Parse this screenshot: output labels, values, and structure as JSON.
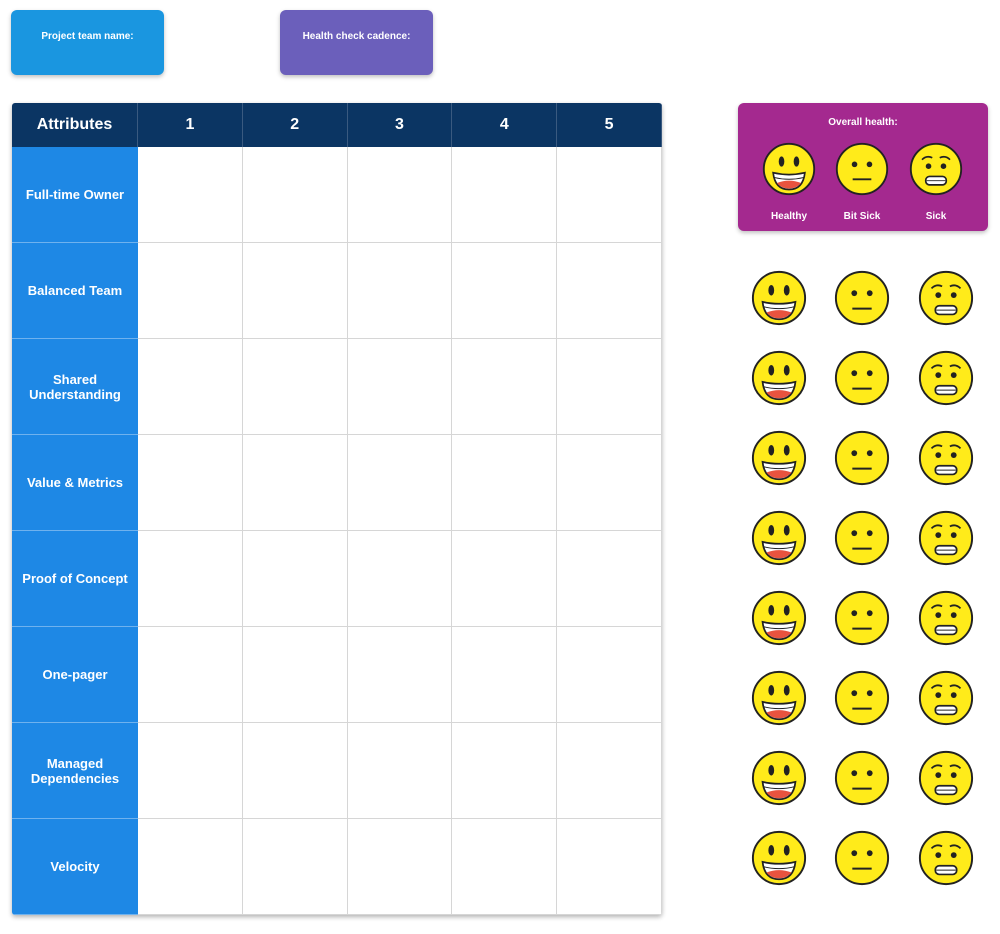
{
  "header": {
    "team_name_label": "Project team name:",
    "cadence_label": "Health check cadence:"
  },
  "table": {
    "columns": [
      "Attributes",
      "1",
      "2",
      "3",
      "4",
      "5"
    ],
    "rows": [
      "Full-time Owner",
      "Balanced Team",
      "Shared Understanding",
      "Value & Metrics",
      "Proof of Concept",
      "One-pager",
      "Managed Dependencies",
      "Velocity"
    ]
  },
  "overall_health": {
    "title": "Overall health:",
    "levels": [
      "Healthy",
      "Bit Sick",
      "Sick"
    ]
  }
}
